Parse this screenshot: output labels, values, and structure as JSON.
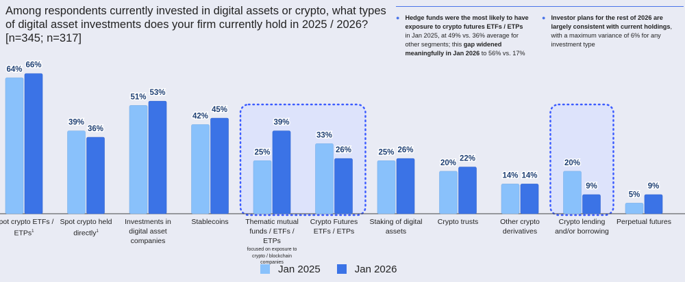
{
  "title": "Among respondents currently invested in digital assets or crypto, what types of digital asset investments does your firm currently hold in 2025 / 2026? [n=345; n=317]",
  "notes": [
    {
      "parts": [
        {
          "t": "Hedge funds were the most likely to have exposure to crypto futures ETFs / ETPs",
          "b": true
        },
        {
          "t": " in Jan 2025, at 49% vs. 36% average for other segments; this ",
          "b": false
        },
        {
          "t": "gap widened meaningfully in Jan 2026",
          "b": true
        },
        {
          "t": " to 56% vs. 17%",
          "b": false
        }
      ]
    },
    {
      "parts": [
        {
          "t": "Investor plans for the rest of 2026 are largely consistent with current holdings",
          "b": true
        },
        {
          "t": ", with a maximum variance of 6% for any investment type",
          "b": false
        }
      ]
    }
  ],
  "colors": {
    "jan2025": "#89c1fb",
    "jan2026": "#3b73e6",
    "label": "#1e3f73",
    "highlight": "#3b5bff",
    "axis": "#444444"
  },
  "chart_data": {
    "type": "bar",
    "ylim": [
      0,
      70
    ],
    "categories": [
      {
        "label": "Spot crypto ETFs / ETPs",
        "sup": "1"
      },
      {
        "label": "Spot crypto held directly",
        "sup": "1"
      },
      {
        "label": "Investments in digital asset companies"
      },
      {
        "label": "Stablecoins"
      },
      {
        "label": "Thematic mutual funds / ETFs / ETPs",
        "sub": "focused on exposure to crypto / blockchain companies",
        "highlight": true
      },
      {
        "label": "Crypto Futures ETFs / ETPs",
        "highlight": true
      },
      {
        "label": "Staking of digital assets"
      },
      {
        "label": "Crypto trusts"
      },
      {
        "label": "Other crypto derivatives"
      },
      {
        "label": "Crypto lending and/or borrowing",
        "highlight": true
      },
      {
        "label": "Perpetual futures"
      }
    ],
    "series": [
      {
        "name": "Jan 2025",
        "values": [
          64,
          39,
          51,
          42,
          25,
          33,
          25,
          20,
          14,
          20,
          5
        ]
      },
      {
        "name": "Jan 2026",
        "values": [
          66,
          36,
          53,
          45,
          39,
          26,
          26,
          22,
          14,
          9,
          9
        ]
      }
    ],
    "value_format": "percent",
    "legend": "bottom-center"
  }
}
